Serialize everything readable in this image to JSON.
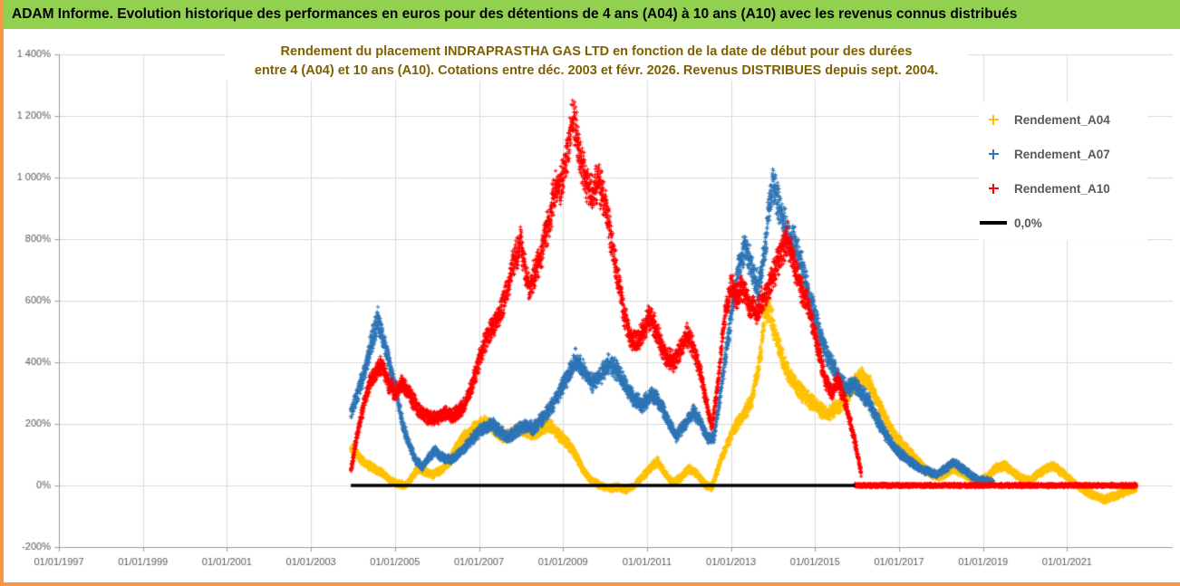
{
  "colors": {
    "border": "#F79646",
    "banner_bg": "#92D050",
    "title_text": "#7F6000",
    "axis_text": "#595959",
    "gridline": "#D9D9D9",
    "series_a04": "#FFC000",
    "series_a07": "#2E75B6",
    "series_a10": "#FF0000",
    "zero_line": "#000000"
  },
  "banner": {
    "title": "ADAM Informe. Evolution historique des performances en euros pour des détentions de 4 ans (A04) à 10 ans (A10) avec les revenus connus distribués"
  },
  "chart": {
    "title_line1": "Rendement du placement INDRAPRASTHA GAS LTD en fonction de la date de début pour des durées",
    "title_line2": "entre 4 (A04) et 10 ans (A10). Cotations entre déc. 2003 et févr. 2026. Revenus DISTRIBUES depuis sept. 2004.",
    "legend": {
      "items": [
        {
          "label": "Rendement_A04",
          "color": "#FFC000",
          "marker": "plus"
        },
        {
          "label": "Rendement_A07",
          "color": "#2E75B6",
          "marker": "plus"
        },
        {
          "label": "Rendement_A10",
          "color": "#FF0000",
          "marker": "plus"
        },
        {
          "label": "0,0%",
          "color": "#000000",
          "marker": "line"
        }
      ]
    }
  },
  "chart_data": {
    "type": "scatter",
    "title": "Rendement du placement INDRAPRASTHA GAS LTD en fonction de la date de début pour des durées entre 4 (A04) et 10 ans (A10). Cotations entre déc. 2003 et févr. 2026. Revenus DISTRIBUES depuis sept. 2004.",
    "xlabel": "",
    "ylabel": "",
    "grid": true,
    "legend_position": "right-top",
    "x_axis": {
      "tick_years": [
        1997,
        1999,
        2001,
        2003,
        2005,
        2007,
        2009,
        2011,
        2013,
        2015,
        2017,
        2019,
        2021
      ],
      "tick_labels": [
        "01/01/1997",
        "01/01/1999",
        "01/01/2001",
        "01/01/2003",
        "01/01/2005",
        "01/01/2007",
        "01/01/2009",
        "01/01/2011",
        "01/01/2013",
        "01/01/2015",
        "01/01/2017",
        "01/01/2019",
        "01/01/2021"
      ],
      "range_years": [
        1997.0,
        2023.5
      ]
    },
    "y_axis": {
      "tick_values": [
        1400,
        1200,
        1000,
        800,
        600,
        400,
        200,
        0,
        -200
      ],
      "tick_labels": [
        "1 400%",
        "1 200%",
        "1 000%",
        "800%",
        "600%",
        "400%",
        "200%",
        "0%",
        "-200%"
      ],
      "range": [
        -200,
        1400
      ]
    },
    "series": [
      {
        "name": "Rendement_A04",
        "color": "#FFC000",
        "marker": "plus",
        "anchors": [
          [
            2003.95,
            120
          ],
          [
            2004.1,
            100
          ],
          [
            2004.3,
            70
          ],
          [
            2004.5,
            55
          ],
          [
            2004.7,
            40
          ],
          [
            2004.9,
            15
          ],
          [
            2005.1,
            5
          ],
          [
            2005.25,
            0
          ],
          [
            2005.4,
            25
          ],
          [
            2005.55,
            55
          ],
          [
            2005.7,
            45
          ],
          [
            2005.9,
            35
          ],
          [
            2006.1,
            50
          ],
          [
            2006.3,
            80
          ],
          [
            2006.5,
            130
          ],
          [
            2006.7,
            165
          ],
          [
            2006.9,
            185
          ],
          [
            2007.1,
            205
          ],
          [
            2007.3,
            195
          ],
          [
            2007.5,
            160
          ],
          [
            2007.7,
            160
          ],
          [
            2007.9,
            180
          ],
          [
            2008.1,
            175
          ],
          [
            2008.3,
            165
          ],
          [
            2008.5,
            185
          ],
          [
            2008.7,
            195
          ],
          [
            2008.9,
            165
          ],
          [
            2009.1,
            140
          ],
          [
            2009.3,
            100
          ],
          [
            2009.5,
            45
          ],
          [
            2009.7,
            15
          ],
          [
            2009.9,
            0
          ],
          [
            2010.1,
            -10
          ],
          [
            2010.3,
            -5
          ],
          [
            2010.5,
            -15
          ],
          [
            2010.7,
            0
          ],
          [
            2010.9,
            30
          ],
          [
            2011.1,
            60
          ],
          [
            2011.25,
            80
          ],
          [
            2011.4,
            45
          ],
          [
            2011.6,
            10
          ],
          [
            2011.8,
            25
          ],
          [
            2012.0,
            55
          ],
          [
            2012.2,
            35
          ],
          [
            2012.4,
            0
          ],
          [
            2012.55,
            -5
          ],
          [
            2012.7,
            60
          ],
          [
            2012.9,
            130
          ],
          [
            2013.1,
            190
          ],
          [
            2013.3,
            230
          ],
          [
            2013.5,
            280
          ],
          [
            2013.7,
            420
          ],
          [
            2013.8,
            560
          ],
          [
            2013.9,
            580
          ],
          [
            2014.0,
            520
          ],
          [
            2014.15,
            450
          ],
          [
            2014.3,
            380
          ],
          [
            2014.5,
            330
          ],
          [
            2014.7,
            300
          ],
          [
            2014.9,
            270
          ],
          [
            2015.1,
            250
          ],
          [
            2015.3,
            230
          ],
          [
            2015.5,
            250
          ],
          [
            2015.7,
            280
          ],
          [
            2015.9,
            320
          ],
          [
            2016.1,
            360
          ],
          [
            2016.3,
            330
          ],
          [
            2016.5,
            270
          ],
          [
            2016.7,
            210
          ],
          [
            2016.9,
            160
          ],
          [
            2017.1,
            130
          ],
          [
            2017.3,
            100
          ],
          [
            2017.5,
            70
          ],
          [
            2017.7,
            45
          ],
          [
            2017.9,
            25
          ],
          [
            2018.1,
            35
          ],
          [
            2018.3,
            55
          ],
          [
            2018.5,
            40
          ],
          [
            2018.7,
            25
          ],
          [
            2018.9,
            15
          ],
          [
            2019.1,
            30
          ],
          [
            2019.3,
            55
          ],
          [
            2019.5,
            65
          ],
          [
            2019.7,
            45
          ],
          [
            2019.9,
            25
          ],
          [
            2020.1,
            15
          ],
          [
            2020.3,
            35
          ],
          [
            2020.5,
            55
          ],
          [
            2020.7,
            60
          ],
          [
            2020.9,
            40
          ],
          [
            2021.1,
            15
          ],
          [
            2021.3,
            -5
          ],
          [
            2021.5,
            -25
          ],
          [
            2021.7,
            -35
          ],
          [
            2021.9,
            -45
          ],
          [
            2022.1,
            -35
          ],
          [
            2022.3,
            -25
          ],
          [
            2022.5,
            -15
          ],
          [
            2022.65,
            -10
          ]
        ]
      },
      {
        "name": "Rendement_A07",
        "color": "#2E75B6",
        "marker": "plus",
        "anchors": [
          [
            2003.95,
            240
          ],
          [
            2004.1,
            290
          ],
          [
            2004.3,
            380
          ],
          [
            2004.45,
            470
          ],
          [
            2004.6,
            540
          ],
          [
            2004.75,
            460
          ],
          [
            2004.9,
            380
          ],
          [
            2005.05,
            290
          ],
          [
            2005.2,
            190
          ],
          [
            2005.35,
            130
          ],
          [
            2005.5,
            80
          ],
          [
            2005.65,
            60
          ],
          [
            2005.8,
            90
          ],
          [
            2005.95,
            115
          ],
          [
            2006.1,
            95
          ],
          [
            2006.3,
            80
          ],
          [
            2006.5,
            100
          ],
          [
            2006.7,
            130
          ],
          [
            2006.9,
            160
          ],
          [
            2007.1,
            185
          ],
          [
            2007.3,
            200
          ],
          [
            2007.5,
            175
          ],
          [
            2007.7,
            155
          ],
          [
            2007.9,
            180
          ],
          [
            2008.1,
            195
          ],
          [
            2008.3,
            185
          ],
          [
            2008.5,
            215
          ],
          [
            2008.7,
            250
          ],
          [
            2008.9,
            300
          ],
          [
            2009.1,
            350
          ],
          [
            2009.3,
            410
          ],
          [
            2009.5,
            370
          ],
          [
            2009.7,
            330
          ],
          [
            2009.9,
            360
          ],
          [
            2010.1,
            395
          ],
          [
            2010.3,
            370
          ],
          [
            2010.5,
            320
          ],
          [
            2010.7,
            280
          ],
          [
            2010.9,
            260
          ],
          [
            2011.1,
            300
          ],
          [
            2011.3,
            270
          ],
          [
            2011.5,
            210
          ],
          [
            2011.7,
            160
          ],
          [
            2011.9,
            200
          ],
          [
            2012.1,
            240
          ],
          [
            2012.3,
            200
          ],
          [
            2012.45,
            150
          ],
          [
            2012.6,
            160
          ],
          [
            2012.75,
            300
          ],
          [
            2012.9,
            450
          ],
          [
            2013.05,
            600
          ],
          [
            2013.2,
            720
          ],
          [
            2013.35,
            780
          ],
          [
            2013.5,
            700
          ],
          [
            2013.65,
            640
          ],
          [
            2013.8,
            750
          ],
          [
            2013.9,
            900
          ],
          [
            2014.0,
            980
          ],
          [
            2014.1,
            930
          ],
          [
            2014.25,
            850
          ],
          [
            2014.4,
            800
          ],
          [
            2014.55,
            780
          ],
          [
            2014.7,
            700
          ],
          [
            2014.85,
            620
          ],
          [
            2015.0,
            550
          ],
          [
            2015.15,
            480
          ],
          [
            2015.3,
            420
          ],
          [
            2015.45,
            380
          ],
          [
            2015.6,
            340
          ],
          [
            2015.75,
            310
          ],
          [
            2015.9,
            330
          ],
          [
            2016.1,
            300
          ],
          [
            2016.3,
            270
          ],
          [
            2016.5,
            210
          ],
          [
            2016.7,
            160
          ],
          [
            2016.9,
            120
          ],
          [
            2017.1,
            95
          ],
          [
            2017.3,
            75
          ],
          [
            2017.5,
            55
          ],
          [
            2017.7,
            45
          ],
          [
            2017.9,
            35
          ],
          [
            2018.1,
            55
          ],
          [
            2018.3,
            75
          ],
          [
            2018.5,
            55
          ],
          [
            2018.7,
            35
          ],
          [
            2018.9,
            20
          ],
          [
            2019.1,
            15
          ],
          [
            2019.25,
            10
          ]
        ]
      },
      {
        "name": "Rendement_A10",
        "color": "#FF0000",
        "marker": "plus",
        "zero_segment": [
          2015.95,
          2022.65
        ],
        "anchors": [
          [
            2003.95,
            50
          ],
          [
            2004.1,
            160
          ],
          [
            2004.25,
            260
          ],
          [
            2004.4,
            330
          ],
          [
            2004.55,
            370
          ],
          [
            2004.7,
            390
          ],
          [
            2004.85,
            330
          ],
          [
            2005.0,
            300
          ],
          [
            2005.15,
            330
          ],
          [
            2005.3,
            310
          ],
          [
            2005.45,
            270
          ],
          [
            2005.6,
            240
          ],
          [
            2005.75,
            225
          ],
          [
            2005.9,
            215
          ],
          [
            2006.05,
            220
          ],
          [
            2006.2,
            235
          ],
          [
            2006.35,
            225
          ],
          [
            2006.5,
            240
          ],
          [
            2006.65,
            260
          ],
          [
            2006.8,
            310
          ],
          [
            2006.95,
            380
          ],
          [
            2007.1,
            450
          ],
          [
            2007.25,
            500
          ],
          [
            2007.4,
            530
          ],
          [
            2007.55,
            580
          ],
          [
            2007.7,
            650
          ],
          [
            2007.85,
            740
          ],
          [
            2008.0,
            790
          ],
          [
            2008.1,
            700
          ],
          [
            2008.2,
            640
          ],
          [
            2008.35,
            700
          ],
          [
            2008.5,
            760
          ],
          [
            2008.65,
            850
          ],
          [
            2008.8,
            950
          ],
          [
            2008.95,
            980
          ],
          [
            2009.1,
            1080
          ],
          [
            2009.25,
            1200
          ],
          [
            2009.4,
            1080
          ],
          [
            2009.55,
            980
          ],
          [
            2009.7,
            950
          ],
          [
            2009.85,
            990
          ],
          [
            2010.0,
            920
          ],
          [
            2010.15,
            800
          ],
          [
            2010.3,
            680
          ],
          [
            2010.45,
            560
          ],
          [
            2010.6,
            480
          ],
          [
            2010.75,
            460
          ],
          [
            2010.9,
            500
          ],
          [
            2011.05,
            550
          ],
          [
            2011.2,
            510
          ],
          [
            2011.35,
            450
          ],
          [
            2011.5,
            410
          ],
          [
            2011.65,
            400
          ],
          [
            2011.8,
            440
          ],
          [
            2011.95,
            490
          ],
          [
            2012.1,
            450
          ],
          [
            2012.25,
            380
          ],
          [
            2012.4,
            280
          ],
          [
            2012.55,
            190
          ],
          [
            2012.7,
            350
          ],
          [
            2012.85,
            550
          ],
          [
            2013.0,
            650
          ],
          [
            2013.15,
            620
          ],
          [
            2013.3,
            640
          ],
          [
            2013.45,
            580
          ],
          [
            2013.6,
            560
          ],
          [
            2013.75,
            600
          ],
          [
            2013.9,
            640
          ],
          [
            2014.05,
            700
          ],
          [
            2014.2,
            760
          ],
          [
            2014.35,
            800
          ],
          [
            2014.5,
            720
          ],
          [
            2014.65,
            640
          ],
          [
            2014.8,
            600
          ],
          [
            2014.95,
            520
          ],
          [
            2015.1,
            430
          ],
          [
            2015.25,
            340
          ],
          [
            2015.4,
            300
          ],
          [
            2015.55,
            340
          ],
          [
            2015.7,
            280
          ],
          [
            2015.85,
            200
          ],
          [
            2016.0,
            110
          ],
          [
            2016.1,
            40
          ]
        ]
      },
      {
        "name": "0,0%",
        "color": "#000000",
        "marker": "line",
        "line_value": 0,
        "line_segment": [
          2003.95,
          2015.95
        ]
      }
    ]
  }
}
